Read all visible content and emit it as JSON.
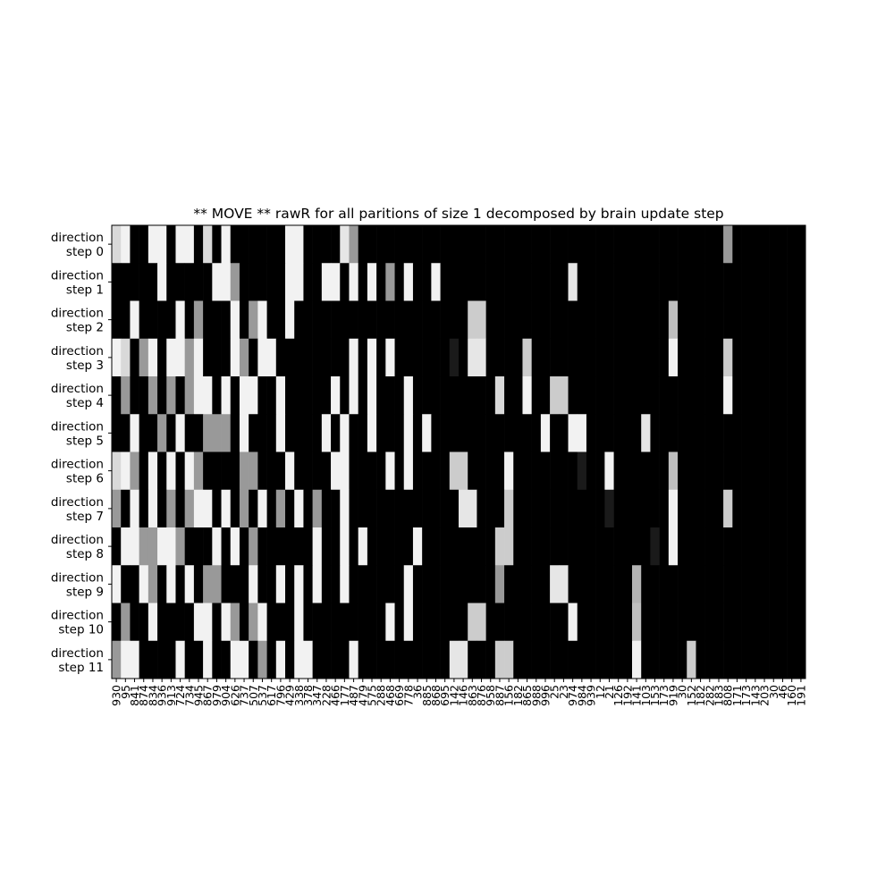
{
  "chart_data": {
    "type": "heatmap",
    "title": "** MOVE **  rawR for all paritions of size 1 decomposed by brain update step",
    "xlabel": "",
    "ylabel": "",
    "colormap": "gray",
    "y_categories": [
      [
        "direction",
        "step 0"
      ],
      [
        "direction",
        "step 1"
      ],
      [
        "direction",
        "step 2"
      ],
      [
        "direction",
        "step 3"
      ],
      [
        "direction",
        "step 4"
      ],
      [
        "direction",
        "step 5"
      ],
      [
        "direction",
        "step 6"
      ],
      [
        "direction",
        "step 7"
      ],
      [
        "direction",
        "step 8"
      ],
      [
        "direction",
        "step 9"
      ],
      [
        "direction",
        "step 10"
      ],
      [
        "direction",
        "step 11"
      ]
    ],
    "x_categories": [
      "930",
      "95",
      "841",
      "874",
      "834",
      "936",
      "913",
      "724",
      "734",
      "945",
      "867",
      "979",
      "904",
      "626",
      "737",
      "507",
      "537",
      "617",
      "796",
      "429",
      "338",
      "378",
      "347",
      "228",
      "466",
      "177",
      "487",
      "479",
      "575",
      "288",
      "468",
      "669",
      "778",
      "36",
      "885",
      "868",
      "695",
      "142",
      "146",
      "863",
      "876",
      "958",
      "887",
      "156",
      "182",
      "865",
      "988",
      "996",
      "25",
      "23",
      "974",
      "984",
      "939",
      "12",
      "21",
      "126",
      "192",
      "141",
      "103",
      "153",
      "173",
      "919",
      "30",
      "152",
      "182",
      "282",
      "183",
      "808",
      "171",
      "173",
      "143",
      "203",
      "30",
      "46",
      "160",
      "191"
    ],
    "values": [
      [
        0.85,
        0.95,
        0.0,
        0.0,
        0.95,
        0.95,
        0.0,
        0.95,
        0.95,
        0.0,
        0.85,
        0.0,
        0.95,
        0.0,
        0.0,
        0.0,
        0.0,
        0.0,
        0.0,
        0.95,
        0.95,
        0.0,
        0.0,
        0.0,
        0.0,
        0.9,
        0.6,
        0.0,
        0.0,
        0.0,
        0.0,
        0.0,
        0.0,
        0.0,
        0.0,
        0.0,
        0.0,
        0.0,
        0.0,
        0.0,
        0.0,
        0.0,
        0.0,
        0.0,
        0.0,
        0.0,
        0.0,
        0.0,
        0.0,
        0.0,
        0.0,
        0.0,
        0.0,
        0.0,
        0.0,
        0.0,
        0.0,
        0.0,
        0.0,
        0.0,
        0.0,
        0.0,
        0.0,
        0.0,
        0.0,
        0.0,
        0.0,
        0.6,
        0.0,
        0.0,
        0.0,
        0.0,
        0.0,
        0.0,
        0.0,
        0.0
      ],
      [
        0.0,
        0.0,
        0.0,
        0.0,
        0.0,
        0.95,
        0.0,
        0.0,
        0.0,
        0.0,
        0.0,
        0.95,
        0.95,
        0.6,
        0.0,
        0.0,
        0.0,
        0.0,
        0.0,
        0.95,
        0.95,
        0.0,
        0.0,
        0.95,
        0.95,
        0.0,
        0.95,
        0.0,
        0.95,
        0.0,
        0.6,
        0.0,
        0.95,
        0.0,
        0.0,
        0.95,
        0.0,
        0.0,
        0.0,
        0.0,
        0.0,
        0.0,
        0.0,
        0.0,
        0.0,
        0.0,
        0.0,
        0.0,
        0.0,
        0.0,
        0.9,
        0.0,
        0.0,
        0.0,
        0.0,
        0.0,
        0.0,
        0.0,
        0.0,
        0.0,
        0.0,
        0.0,
        0.0,
        0.0,
        0.0,
        0.0,
        0.0,
        0.0,
        0.0,
        0.0,
        0.0,
        0.0,
        0.0,
        0.0,
        0.0,
        0.0
      ],
      [
        0.0,
        0.0,
        0.95,
        0.0,
        0.0,
        0.0,
        0.0,
        0.95,
        0.0,
        0.6,
        0.0,
        0.0,
        0.0,
        0.95,
        0.0,
        0.6,
        0.95,
        0.0,
        0.0,
        0.95,
        0.0,
        0.0,
        0.0,
        0.0,
        0.0,
        0.0,
        0.0,
        0.0,
        0.0,
        0.0,
        0.0,
        0.0,
        0.0,
        0.0,
        0.0,
        0.0,
        0.0,
        0.0,
        0.0,
        0.8,
        0.8,
        0.0,
        0.0,
        0.0,
        0.0,
        0.0,
        0.0,
        0.0,
        0.0,
        0.0,
        0.0,
        0.0,
        0.0,
        0.0,
        0.0,
        0.0,
        0.0,
        0.0,
        0.0,
        0.0,
        0.0,
        0.75,
        0.0,
        0.0,
        0.0,
        0.0,
        0.0,
        0.0,
        0.0,
        0.0,
        0.0,
        0.0,
        0.0,
        0.0,
        0.0,
        0.0
      ],
      [
        0.95,
        0.85,
        0.0,
        0.6,
        0.95,
        0.0,
        0.95,
        0.95,
        0.6,
        0.95,
        0.0,
        0.0,
        0.0,
        0.95,
        0.6,
        0.0,
        0.95,
        0.95,
        0.0,
        0.0,
        0.0,
        0.0,
        0.0,
        0.0,
        0.0,
        0.0,
        0.95,
        0.0,
        0.95,
        0.0,
        0.95,
        0.0,
        0.0,
        0.0,
        0.0,
        0.0,
        0.0,
        0.1,
        0.0,
        0.9,
        0.9,
        0.0,
        0.0,
        0.0,
        0.0,
        0.8,
        0.0,
        0.0,
        0.0,
        0.0,
        0.0,
        0.0,
        0.0,
        0.0,
        0.0,
        0.0,
        0.0,
        0.0,
        0.0,
        0.0,
        0.0,
        0.95,
        0.0,
        0.0,
        0.0,
        0.0,
        0.0,
        0.8,
        0.0,
        0.0,
        0.0,
        0.0,
        0.0,
        0.0,
        0.0,
        0.0
      ],
      [
        0.0,
        0.6,
        0.0,
        0.0,
        0.6,
        0.0,
        0.6,
        0.0,
        0.6,
        0.95,
        0.95,
        0.0,
        0.95,
        0.0,
        0.95,
        0.95,
        0.0,
        0.0,
        0.95,
        0.0,
        0.0,
        0.0,
        0.0,
        0.0,
        0.95,
        0.0,
        0.95,
        0.0,
        0.95,
        0.0,
        0.0,
        0.0,
        0.95,
        0.0,
        0.0,
        0.0,
        0.0,
        0.0,
        0.0,
        0.0,
        0.0,
        0.0,
        0.85,
        0.0,
        0.0,
        0.95,
        0.0,
        0.0,
        0.8,
        0.8,
        0.0,
        0.0,
        0.0,
        0.0,
        0.0,
        0.0,
        0.0,
        0.0,
        0.0,
        0.0,
        0.0,
        0.0,
        0.0,
        0.0,
        0.0,
        0.0,
        0.0,
        0.95,
        0.0,
        0.0,
        0.0,
        0.0,
        0.0,
        0.0,
        0.0,
        0.0
      ],
      [
        0.0,
        0.0,
        0.95,
        0.0,
        0.0,
        0.6,
        0.0,
        0.95,
        0.0,
        0.0,
        0.6,
        0.6,
        0.6,
        0.0,
        0.95,
        0.0,
        0.0,
        0.0,
        0.95,
        0.0,
        0.0,
        0.0,
        0.0,
        0.95,
        0.0,
        0.95,
        0.0,
        0.0,
        0.95,
        0.0,
        0.0,
        0.0,
        0.95,
        0.0,
        0.95,
        0.0,
        0.0,
        0.0,
        0.0,
        0.0,
        0.0,
        0.0,
        0.0,
        0.0,
        0.0,
        0.0,
        0.0,
        0.95,
        0.0,
        0.0,
        0.95,
        0.95,
        0.0,
        0.0,
        0.0,
        0.0,
        0.0,
        0.0,
        0.9,
        0.0,
        0.0,
        0.0,
        0.0,
        0.0,
        0.0,
        0.0,
        0.0,
        0.0,
        0.0,
        0.0,
        0.0,
        0.0,
        0.0,
        0.0,
        0.0,
        0.0
      ],
      [
        0.85,
        0.95,
        0.6,
        0.0,
        0.95,
        0.0,
        0.95,
        0.0,
        0.95,
        0.6,
        0.0,
        0.0,
        0.0,
        0.0,
        0.6,
        0.6,
        0.0,
        0.0,
        0.0,
        0.95,
        0.0,
        0.0,
        0.0,
        0.0,
        0.95,
        0.95,
        0.0,
        0.0,
        0.0,
        0.0,
        0.95,
        0.0,
        0.95,
        0.0,
        0.0,
        0.0,
        0.0,
        0.8,
        0.8,
        0.0,
        0.0,
        0.0,
        0.0,
        0.95,
        0.0,
        0.0,
        0.0,
        0.0,
        0.0,
        0.0,
        0.0,
        0.1,
        0.0,
        0.0,
        0.95,
        0.0,
        0.0,
        0.0,
        0.0,
        0.0,
        0.0,
        0.75,
        0.0,
        0.0,
        0.0,
        0.0,
        0.0,
        0.0,
        0.0,
        0.0,
        0.0,
        0.0,
        0.0,
        0.0,
        0.0,
        0.0
      ],
      [
        0.6,
        0.0,
        0.95,
        0.0,
        0.95,
        0.0,
        0.6,
        0.0,
        0.6,
        0.95,
        0.95,
        0.0,
        0.95,
        0.0,
        0.6,
        0.0,
        0.95,
        0.0,
        0.6,
        0.0,
        0.95,
        0.0,
        0.6,
        0.0,
        0.0,
        0.95,
        0.0,
        0.0,
        0.0,
        0.0,
        0.0,
        0.0,
        0.0,
        0.0,
        0.0,
        0.0,
        0.0,
        0.0,
        0.9,
        0.9,
        0.0,
        0.0,
        0.0,
        0.8,
        0.0,
        0.0,
        0.0,
        0.0,
        0.0,
        0.0,
        0.0,
        0.0,
        0.0,
        0.0,
        0.1,
        0.0,
        0.0,
        0.0,
        0.0,
        0.0,
        0.0,
        0.95,
        0.0,
        0.0,
        0.0,
        0.0,
        0.0,
        0.8,
        0.0,
        0.0,
        0.0,
        0.0,
        0.0,
        0.0,
        0.0,
        0.0
      ],
      [
        0.0,
        0.95,
        0.95,
        0.6,
        0.6,
        0.95,
        0.95,
        0.6,
        0.0,
        0.0,
        0.0,
        0.95,
        0.0,
        0.95,
        0.0,
        0.6,
        0.0,
        0.0,
        0.0,
        0.0,
        0.0,
        0.0,
        0.95,
        0.0,
        0.0,
        0.95,
        0.0,
        0.95,
        0.0,
        0.0,
        0.0,
        0.0,
        0.0,
        0.95,
        0.0,
        0.0,
        0.0,
        0.0,
        0.0,
        0.0,
        0.0,
        0.0,
        0.8,
        0.8,
        0.0,
        0.0,
        0.0,
        0.0,
        0.0,
        0.0,
        0.0,
        0.0,
        0.0,
        0.0,
        0.0,
        0.0,
        0.0,
        0.0,
        0.0,
        0.1,
        0.0,
        0.95,
        0.0,
        0.0,
        0.0,
        0.0,
        0.0,
        0.0,
        0.0,
        0.0,
        0.0,
        0.0,
        0.0,
        0.0,
        0.0,
        0.0
      ],
      [
        0.95,
        0.0,
        0.0,
        0.95,
        0.6,
        0.0,
        0.95,
        0.0,
        0.95,
        0.0,
        0.6,
        0.6,
        0.0,
        0.0,
        0.0,
        0.95,
        0.0,
        0.0,
        0.95,
        0.0,
        0.95,
        0.0,
        0.95,
        0.0,
        0.0,
        0.95,
        0.0,
        0.0,
        0.0,
        0.0,
        0.0,
        0.0,
        0.95,
        0.0,
        0.0,
        0.0,
        0.0,
        0.0,
        0.0,
        0.0,
        0.0,
        0.0,
        0.6,
        0.0,
        0.0,
        0.0,
        0.0,
        0.0,
        0.9,
        0.9,
        0.0,
        0.0,
        0.0,
        0.0,
        0.0,
        0.0,
        0.0,
        0.7,
        0.0,
        0.0,
        0.0,
        0.0,
        0.0,
        0.0,
        0.0,
        0.0,
        0.0,
        0.0,
        0.0,
        0.0,
        0.0,
        0.0,
        0.0,
        0.0,
        0.0,
        0.0
      ],
      [
        0.0,
        0.6,
        0.0,
        0.0,
        0.95,
        0.0,
        0.0,
        0.0,
        0.0,
        0.95,
        0.95,
        0.0,
        0.95,
        0.6,
        0.0,
        0.6,
        0.95,
        0.0,
        0.0,
        0.0,
        0.95,
        0.0,
        0.0,
        0.0,
        0.0,
        0.0,
        0.0,
        0.0,
        0.0,
        0.0,
        0.95,
        0.0,
        0.95,
        0.0,
        0.0,
        0.0,
        0.0,
        0.0,
        0.0,
        0.8,
        0.8,
        0.0,
        0.0,
        0.0,
        0.0,
        0.0,
        0.0,
        0.0,
        0.0,
        0.0,
        0.95,
        0.0,
        0.0,
        0.0,
        0.0,
        0.0,
        0.0,
        0.75,
        0.0,
        0.0,
        0.0,
        0.0,
        0.0,
        0.0,
        0.0,
        0.0,
        0.0,
        0.0,
        0.0,
        0.0,
        0.0,
        0.0,
        0.0,
        0.0,
        0.0,
        0.0
      ],
      [
        0.6,
        0.95,
        0.95,
        0.0,
        0.0,
        0.0,
        0.0,
        0.95,
        0.0,
        0.0,
        0.95,
        0.0,
        0.0,
        0.95,
        0.95,
        0.0,
        0.6,
        0.0,
        0.95,
        0.0,
        0.95,
        0.95,
        0.0,
        0.0,
        0.0,
        0.0,
        0.95,
        0.0,
        0.0,
        0.0,
        0.0,
        0.0,
        0.0,
        0.0,
        0.0,
        0.0,
        0.0,
        0.9,
        0.9,
        0.0,
        0.0,
        0.0,
        0.8,
        0.8,
        0.0,
        0.0,
        0.0,
        0.0,
        0.0,
        0.0,
        0.0,
        0.0,
        0.0,
        0.0,
        0.0,
        0.0,
        0.0,
        0.95,
        0.0,
        0.0,
        0.0,
        0.0,
        0.0,
        0.8,
        0.0,
        0.0,
        0.0,
        0.0,
        0.0,
        0.0,
        0.0,
        0.0,
        0.0,
        0.0,
        0.0,
        0.0
      ]
    ],
    "grid": false,
    "legend": "none"
  }
}
